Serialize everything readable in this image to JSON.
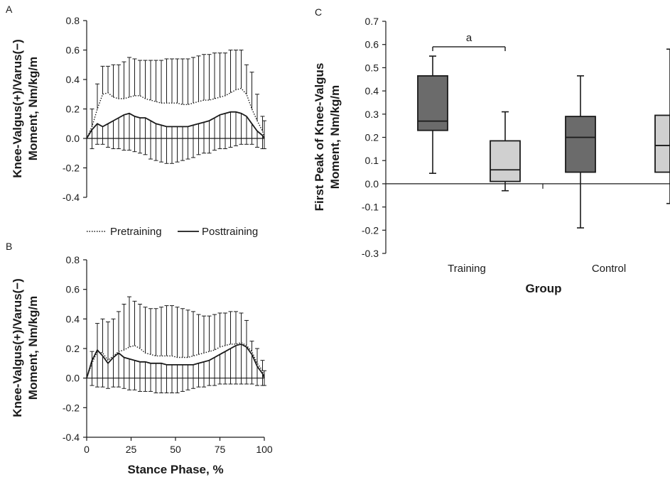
{
  "chart_data": [
    {
      "panel": "A",
      "type": "line",
      "ylabel": [
        "Knee-Valgus(+)/Varus(−)",
        "Moment, Nm/kg/m"
      ],
      "xlim": [
        0,
        100
      ],
      "ylim": [
        -0.4,
        0.8
      ],
      "yticks": [
        "0.8",
        "0.6",
        "0.4",
        "0.2",
        "0.0",
        "-0.2",
        "-0.4"
      ],
      "x": [
        0,
        3,
        6,
        9,
        12,
        15,
        18,
        21,
        24,
        27,
        30,
        33,
        36,
        39,
        42,
        45,
        48,
        51,
        54,
        57,
        60,
        63,
        66,
        69,
        72,
        75,
        78,
        81,
        84,
        87,
        90,
        93,
        96,
        99,
        100
      ],
      "series": [
        {
          "name": "Pretraining",
          "style": "dotted",
          "values": [
            0.0,
            0.08,
            0.2,
            0.3,
            0.31,
            0.28,
            0.27,
            0.27,
            0.28,
            0.29,
            0.29,
            0.27,
            0.26,
            0.25,
            0.24,
            0.24,
            0.24,
            0.24,
            0.23,
            0.23,
            0.24,
            0.25,
            0.26,
            0.26,
            0.27,
            0.28,
            0.29,
            0.31,
            0.33,
            0.34,
            0.3,
            0.2,
            0.12,
            0.05,
            0.0
          ],
          "error_upper": [
            0.02,
            0.2,
            0.37,
            0.49,
            0.49,
            0.5,
            0.5,
            0.52,
            0.55,
            0.54,
            0.53,
            0.53,
            0.53,
            0.53,
            0.53,
            0.54,
            0.54,
            0.54,
            0.54,
            0.54,
            0.55,
            0.56,
            0.57,
            0.57,
            0.58,
            0.58,
            0.58,
            0.6,
            0.6,
            0.6,
            0.5,
            0.45,
            0.3,
            0.15,
            0.12
          ]
        },
        {
          "name": "Posttraining",
          "style": "solid",
          "values": [
            0.0,
            0.06,
            0.1,
            0.08,
            0.1,
            0.12,
            0.14,
            0.16,
            0.17,
            0.15,
            0.14,
            0.14,
            0.12,
            0.1,
            0.09,
            0.08,
            0.08,
            0.08,
            0.08,
            0.08,
            0.09,
            0.1,
            0.11,
            0.12,
            0.14,
            0.16,
            0.17,
            0.18,
            0.18,
            0.17,
            0.15,
            0.1,
            0.05,
            0.02,
            0.0
          ],
          "error_lower": [
            -0.12,
            -0.07,
            -0.04,
            -0.04,
            -0.06,
            -0.07,
            -0.07,
            -0.08,
            -0.08,
            -0.09,
            -0.1,
            -0.11,
            -0.14,
            -0.15,
            -0.16,
            -0.17,
            -0.17,
            -0.16,
            -0.15,
            -0.14,
            -0.13,
            -0.11,
            -0.1,
            -0.1,
            -0.08,
            -0.07,
            -0.07,
            -0.06,
            -0.05,
            -0.04,
            -0.04,
            -0.04,
            -0.06,
            -0.07,
            -0.07
          ]
        }
      ],
      "legend": [
        "Pretraining",
        "Posttraining"
      ]
    },
    {
      "panel": "B",
      "type": "line",
      "ylabel": [
        "Knee-Valgus(+)/Varus(−)",
        "Moment, Nm/kg/m"
      ],
      "xlabel": "Stance Phase, %",
      "xlim": [
        0,
        100
      ],
      "ylim": [
        -0.4,
        0.8
      ],
      "yticks": [
        "0.8",
        "0.6",
        "0.4",
        "0.2",
        "0.0",
        "-0.2",
        "-0.4"
      ],
      "xticks": [
        "0",
        "25",
        "50",
        "75",
        "100"
      ],
      "x": [
        0,
        3,
        6,
        9,
        12,
        15,
        18,
        21,
        24,
        27,
        30,
        33,
        36,
        39,
        42,
        45,
        48,
        51,
        54,
        57,
        60,
        63,
        66,
        69,
        72,
        75,
        78,
        81,
        84,
        87,
        90,
        93,
        96,
        99,
        100
      ],
      "series": [
        {
          "name": "Pretraining",
          "style": "dotted",
          "values": [
            0.0,
            0.1,
            0.18,
            0.17,
            0.12,
            0.15,
            0.18,
            0.19,
            0.21,
            0.22,
            0.2,
            0.17,
            0.16,
            0.15,
            0.15,
            0.15,
            0.15,
            0.14,
            0.14,
            0.14,
            0.15,
            0.16,
            0.17,
            0.18,
            0.19,
            0.21,
            0.22,
            0.23,
            0.23,
            0.24,
            0.22,
            0.18,
            0.1,
            0.05,
            0.0
          ],
          "error_upper": [
            0.02,
            0.18,
            0.37,
            0.4,
            0.38,
            0.4,
            0.45,
            0.5,
            0.55,
            0.52,
            0.5,
            0.48,
            0.47,
            0.47,
            0.48,
            0.49,
            0.49,
            0.48,
            0.47,
            0.46,
            0.45,
            0.43,
            0.42,
            0.42,
            0.43,
            0.44,
            0.44,
            0.45,
            0.45,
            0.44,
            0.39,
            0.25,
            0.2,
            0.12,
            0.05
          ]
        },
        {
          "name": "Posttraining",
          "style": "solid",
          "values": [
            0.0,
            0.12,
            0.19,
            0.15,
            0.1,
            0.14,
            0.17,
            0.14,
            0.13,
            0.12,
            0.11,
            0.11,
            0.1,
            0.1,
            0.1,
            0.09,
            0.09,
            0.09,
            0.09,
            0.09,
            0.09,
            0.1,
            0.11,
            0.12,
            0.14,
            0.16,
            0.18,
            0.2,
            0.22,
            0.23,
            0.21,
            0.16,
            0.08,
            0.03,
            0.0
          ],
          "error_lower": [
            -0.05,
            -0.05,
            -0.06,
            -0.06,
            -0.07,
            -0.06,
            -0.06,
            -0.07,
            -0.08,
            -0.08,
            -0.09,
            -0.09,
            -0.09,
            -0.1,
            -0.1,
            -0.1,
            -0.1,
            -0.1,
            -0.09,
            -0.08,
            -0.07,
            -0.06,
            -0.06,
            -0.05,
            -0.05,
            -0.04,
            -0.04,
            -0.04,
            -0.04,
            -0.04,
            -0.04,
            -0.04,
            -0.05,
            -0.05,
            -0.05
          ]
        }
      ]
    },
    {
      "panel": "C",
      "type": "box",
      "ylabel": [
        "First Peak of Knee-Valgus",
        "Moment, Nm/kg/m"
      ],
      "xlabel": "Group",
      "ylim": [
        -0.3,
        0.7
      ],
      "yticks": [
        "0.7",
        "0.6",
        "0.5",
        "0.4",
        "0.3",
        "0.2",
        "0.1",
        "0.0",
        "-0.1",
        "-0.2",
        "-0.3"
      ],
      "categories": [
        "Training",
        "Control"
      ],
      "boxes": [
        {
          "group": "Training",
          "fill": "#6b6b6b",
          "min": 0.045,
          "q1": 0.23,
          "median": 0.27,
          "q3": 0.465,
          "max": 0.55
        },
        {
          "group": "Training",
          "fill": "#d0d0d0",
          "min": -0.03,
          "q1": 0.01,
          "median": 0.06,
          "q3": 0.185,
          "max": 0.31
        },
        {
          "group": "Control",
          "fill": "#6b6b6b",
          "min": -0.19,
          "q1": 0.05,
          "median": 0.2,
          "q3": 0.29,
          "max": 0.465
        },
        {
          "group": "Control",
          "fill": "#d0d0d0",
          "min": -0.085,
          "q1": 0.05,
          "median": 0.165,
          "q3": 0.295,
          "max": 0.58
        }
      ],
      "annotation": {
        "label": "a",
        "y": 0.59
      }
    }
  ],
  "colors": {
    "ink": "#1a1a1a",
    "dark_box": "#6b6b6b",
    "light_box": "#d0d0d0"
  }
}
